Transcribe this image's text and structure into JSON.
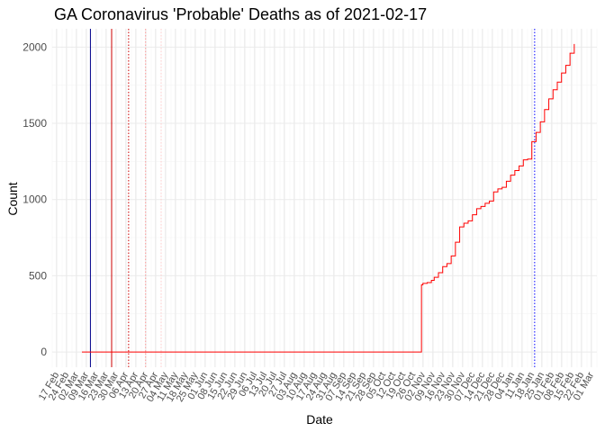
{
  "chart_data": {
    "type": "line",
    "title": "GA Coronavirus 'Probable' Deaths as of 2021-02-17",
    "xlabel": "Date",
    "ylabel": "Count",
    "x_axis": "date",
    "xlim": [
      "2020-02-14",
      "2021-03-05"
    ],
    "ylim": [
      -100,
      2120
    ],
    "y_ticks": [
      0,
      500,
      1000,
      1500,
      2000
    ],
    "x_ticks": [
      {
        "date": "2020-02-17",
        "label": "17 Feb"
      },
      {
        "date": "2020-02-24",
        "label": "24 Feb"
      },
      {
        "date": "2020-03-02",
        "label": "02 Mar"
      },
      {
        "date": "2020-03-09",
        "label": "09 Mar"
      },
      {
        "date": "2020-03-16",
        "label": "16 Mar"
      },
      {
        "date": "2020-03-23",
        "label": "23 Mar"
      },
      {
        "date": "2020-03-30",
        "label": "30 Mar"
      },
      {
        "date": "2020-04-06",
        "label": "06 Apr"
      },
      {
        "date": "2020-04-13",
        "label": "13 Apr"
      },
      {
        "date": "2020-04-20",
        "label": "20 Apr"
      },
      {
        "date": "2020-04-27",
        "label": "27 Apr"
      },
      {
        "date": "2020-05-04",
        "label": "04 May"
      },
      {
        "date": "2020-05-11",
        "label": "11 May"
      },
      {
        "date": "2020-05-18",
        "label": "18 May"
      },
      {
        "date": "2020-05-25",
        "label": "25 May"
      },
      {
        "date": "2020-06-01",
        "label": "01 Jun"
      },
      {
        "date": "2020-06-08",
        "label": "08 Jun"
      },
      {
        "date": "2020-06-15",
        "label": "15 Jun"
      },
      {
        "date": "2020-06-22",
        "label": "22 Jun"
      },
      {
        "date": "2020-06-29",
        "label": "29 Jun"
      },
      {
        "date": "2020-07-06",
        "label": "06 Jul"
      },
      {
        "date": "2020-07-13",
        "label": "13 Jul"
      },
      {
        "date": "2020-07-20",
        "label": "20 Jul"
      },
      {
        "date": "2020-07-27",
        "label": "27 Jul"
      },
      {
        "date": "2020-08-03",
        "label": "03 Aug"
      },
      {
        "date": "2020-08-10",
        "label": "10 Aug"
      },
      {
        "date": "2020-08-17",
        "label": "17 Aug"
      },
      {
        "date": "2020-08-24",
        "label": "24 Aug"
      },
      {
        "date": "2020-08-31",
        "label": "31 Aug"
      },
      {
        "date": "2020-09-07",
        "label": "07 Sep"
      },
      {
        "date": "2020-09-14",
        "label": "14 Sep"
      },
      {
        "date": "2020-09-21",
        "label": "21 Sep"
      },
      {
        "date": "2020-09-28",
        "label": "28 Sep"
      },
      {
        "date": "2020-10-05",
        "label": "05 Oct"
      },
      {
        "date": "2020-10-12",
        "label": "12 Oct"
      },
      {
        "date": "2020-10-19",
        "label": "19 Oct"
      },
      {
        "date": "2020-10-26",
        "label": "26 Oct"
      },
      {
        "date": "2020-11-02",
        "label": "02 Nov"
      },
      {
        "date": "2020-11-09",
        "label": "09 Nov"
      },
      {
        "date": "2020-11-16",
        "label": "16 Nov"
      },
      {
        "date": "2020-11-23",
        "label": "23 Nov"
      },
      {
        "date": "2020-11-30",
        "label": "30 Nov"
      },
      {
        "date": "2020-12-07",
        "label": "07 Dec"
      },
      {
        "date": "2020-12-14",
        "label": "14 Dec"
      },
      {
        "date": "2020-12-21",
        "label": "21 Dec"
      },
      {
        "date": "2020-12-28",
        "label": "28 Dec"
      },
      {
        "date": "2021-01-04",
        "label": "04 Jan"
      },
      {
        "date": "2021-01-11",
        "label": "11 Jan"
      },
      {
        "date": "2021-01-18",
        "label": "18 Jan"
      },
      {
        "date": "2021-01-25",
        "label": "25 Jan"
      },
      {
        "date": "2021-02-01",
        "label": "01 Feb"
      },
      {
        "date": "2021-02-08",
        "label": "08 Feb"
      },
      {
        "date": "2021-02-15",
        "label": "15 Feb"
      },
      {
        "date": "2021-02-22",
        "label": "22 Feb"
      },
      {
        "date": "2021-03-01",
        "label": "01 Mar"
      }
    ],
    "grid": true,
    "series": [
      {
        "color": "#ff0000",
        "x": [
          "2020-03-06",
          "2020-10-29",
          "2020-11-01",
          "2020-11-02",
          "2020-11-05",
          "2020-11-08",
          "2020-11-10",
          "2020-11-13",
          "2020-11-16",
          "2020-11-19",
          "2020-11-22",
          "2020-11-25",
          "2020-11-28",
          "2020-12-01",
          "2020-12-04",
          "2020-12-07",
          "2020-12-10",
          "2020-12-13",
          "2020-12-16",
          "2020-12-19",
          "2020-12-22",
          "2020-12-25",
          "2020-12-28",
          "2020-12-31",
          "2021-01-03",
          "2021-01-06",
          "2021-01-09",
          "2021-01-12",
          "2021-01-15",
          "2021-01-18",
          "2021-01-21",
          "2021-01-24",
          "2021-01-27",
          "2021-01-30",
          "2021-02-02",
          "2021-02-05",
          "2021-02-08",
          "2021-02-11",
          "2021-02-14",
          "2021-02-17"
        ],
        "y": [
          0,
          0,
          440,
          450,
          455,
          470,
          490,
          520,
          560,
          580,
          630,
          720,
          820,
          845,
          860,
          900,
          940,
          955,
          975,
          990,
          1050,
          1070,
          1080,
          1120,
          1160,
          1190,
          1220,
          1260,
          1265,
          1380,
          1440,
          1510,
          1590,
          1660,
          1720,
          1770,
          1830,
          1880,
          1960,
          2020
        ]
      }
    ],
    "reference_lines": [
      {
        "date": "2020-03-12",
        "color": "#00008b",
        "style": "solid"
      },
      {
        "date": "2020-03-27",
        "color": "#cc0000",
        "style": "solid"
      },
      {
        "date": "2020-04-08",
        "color": "#cc0000",
        "style": "dotted"
      },
      {
        "date": "2020-04-20",
        "color": "#ff9999",
        "style": "dotted"
      },
      {
        "date": "2020-05-01",
        "color": "#ffcccc",
        "style": "dotted"
      },
      {
        "date": "2021-01-20",
        "color": "#0000ff",
        "style": "dotted"
      }
    ]
  }
}
